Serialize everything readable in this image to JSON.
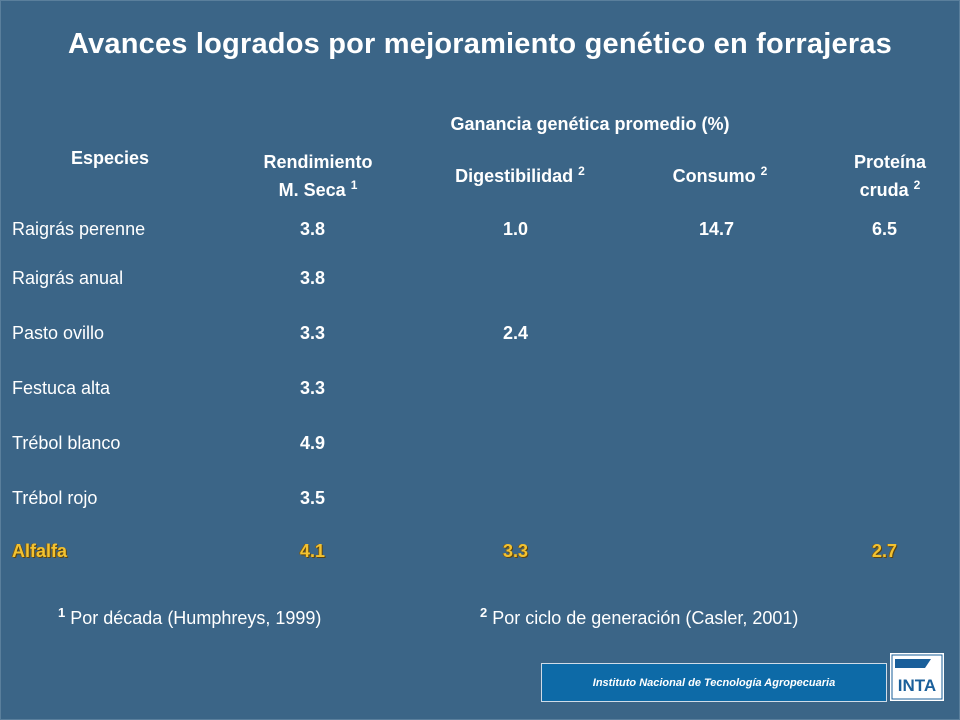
{
  "title": "Avances logrados por mejoramiento genético en forrajeras",
  "headers": {
    "species": "Especies",
    "group": "Ganancia genética promedio (%)",
    "rendimiento_l1": "Rendimiento",
    "rendimiento_l2": "M. Seca",
    "rendimiento_sup": "1",
    "digestibilidad": "Digestibilidad",
    "digestibilidad_sup": "2",
    "consumo": "Consumo",
    "consumo_sup": "2",
    "proteina_l1": "Proteína",
    "proteina_l2": "cruda",
    "proteina_sup": "2"
  },
  "rows": [
    {
      "species": "Raigrás perenne",
      "rendimiento": "3.8",
      "digestibilidad": "1.0",
      "consumo": "14.7",
      "proteina": "6.5"
    },
    {
      "species": "Raigrás anual",
      "rendimiento": "3.8",
      "digestibilidad": "",
      "consumo": "",
      "proteina": ""
    },
    {
      "species": "Pasto ovillo",
      "rendimiento": "3.3",
      "digestibilidad": "2.4",
      "consumo": "",
      "proteina": ""
    },
    {
      "species": "Festuca alta",
      "rendimiento": "3.3",
      "digestibilidad": "",
      "consumo": "",
      "proteina": ""
    },
    {
      "species": "Trébol blanco",
      "rendimiento": "4.9",
      "digestibilidad": "",
      "consumo": "",
      "proteina": ""
    },
    {
      "species": "Trébol rojo",
      "rendimiento": "3.5",
      "digestibilidad": "",
      "consumo": "",
      "proteina": ""
    },
    {
      "species": "Alfalfa",
      "rendimiento": "4.1",
      "digestibilidad": "3.3",
      "consumo": "",
      "proteina": "2.7"
    }
  ],
  "highlight_color": "#f3c230",
  "footnotes": {
    "f1_num": "1",
    "f1_text": "Por década (Humphreys, 1999)",
    "f2_num": "2",
    "f2_text": "Por ciclo de generación (Casler, 2001)"
  },
  "institution": "Instituto Nacional de Tecnología Agropecuaria",
  "logo_text": "INTA"
}
